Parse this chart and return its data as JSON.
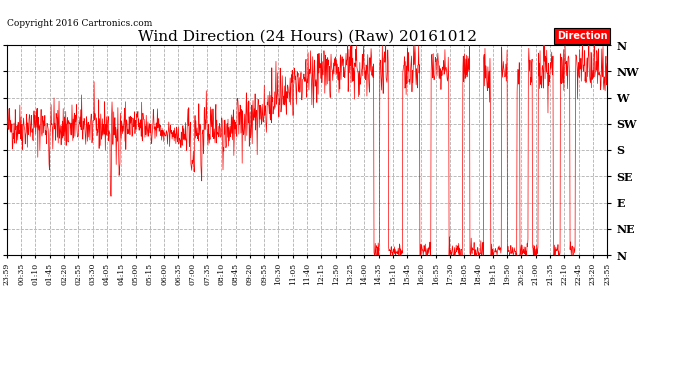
{
  "title": "Wind Direction (24 Hours) (Raw) 20161012",
  "copyright": "Copyright 2016 Cartronics.com",
  "legend_label": "Direction",
  "legend_bg": "#ff0000",
  "legend_fg": "#ffffff",
  "background_color": "#ffffff",
  "plot_bg": "#ffffff",
  "line_color": "#ff0000",
  "grid_color": "#b0b0b0",
  "title_fontsize": 11,
  "ytick_labels": [
    "N",
    "NW",
    "W",
    "SW",
    "S",
    "SE",
    "E",
    "NE",
    "N"
  ],
  "ytick_values": [
    360,
    315,
    270,
    225,
    180,
    135,
    90,
    45,
    0
  ],
  "ylim": [
    0,
    360
  ],
  "xtick_labels": [
    "23:59",
    "00:35",
    "01:10",
    "01:45",
    "02:20",
    "02:55",
    "03:30",
    "04:05",
    "04:15",
    "05:00",
    "05:15",
    "06:00",
    "06:35",
    "07:00",
    "07:35",
    "08:10",
    "08:45",
    "09:20",
    "09:55",
    "10:30",
    "11:05",
    "11:40",
    "12:15",
    "12:50",
    "13:25",
    "14:00",
    "14:35",
    "15:10",
    "15:45",
    "16:20",
    "16:55",
    "17:30",
    "18:05",
    "18:40",
    "19:15",
    "19:50",
    "20:25",
    "21:00",
    "21:35",
    "22:10",
    "22:45",
    "23:20",
    "23:55"
  ]
}
